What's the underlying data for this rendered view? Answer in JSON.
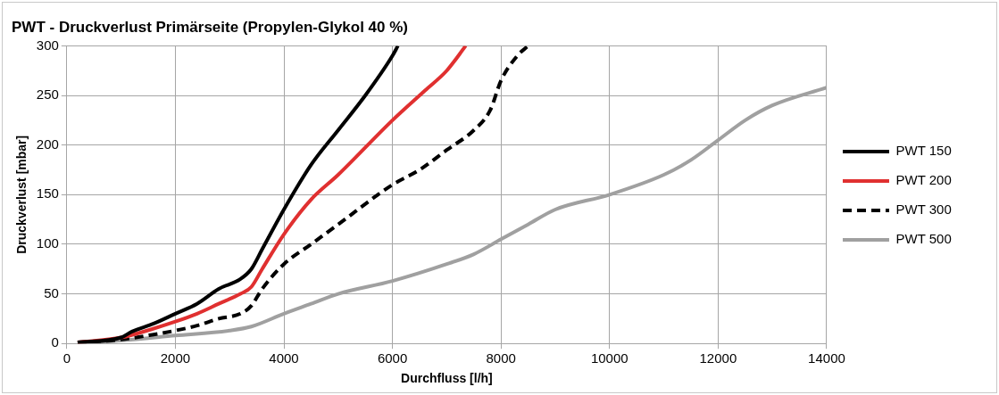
{
  "chart_data": {
    "type": "line",
    "title": "PWT - Druckverlust Primärseite (Propylen-Glykol 40 %)",
    "xlabel": "Durchfluss [l/h]",
    "ylabel": "Druckverlust [mbar]",
    "xlim": [
      0,
      14000
    ],
    "xticks": [
      0,
      2000,
      4000,
      6000,
      8000,
      10000,
      12000,
      14000
    ],
    "ylim": [
      0,
      300
    ],
    "yticks": [
      0,
      50,
      100,
      150,
      200,
      250,
      300
    ],
    "grid": true,
    "legend": "right",
    "marker": "none",
    "series": [
      {
        "name": "PWT 150",
        "color": "#000000",
        "line_style": "solid",
        "x": [
          200,
          1000,
          1200,
          1600,
          2000,
          2400,
          2800,
          3200,
          3400,
          3600,
          4000,
          4500,
          5000,
          5500,
          6000,
          6100
        ],
        "values": [
          1,
          6,
          12,
          20,
          30,
          40,
          55,
          65,
          75,
          95,
          135,
          180,
          215,
          250,
          290,
          300
        ]
      },
      {
        "name": "PWT 200",
        "color": "#e03030",
        "line_style": "solid",
        "x": [
          200,
          1000,
          1600,
          2000,
          2400,
          2800,
          3200,
          3400,
          3600,
          4000,
          4500,
          5000,
          6000,
          6600,
          7000,
          7350
        ],
        "values": [
          1,
          6,
          15,
          22,
          30,
          40,
          50,
          57,
          75,
          110,
          145,
          170,
          225,
          255,
          275,
          300
        ]
      },
      {
        "name": "PWT 300",
        "color": "#000000",
        "line_style": "dashed",
        "x": [
          200,
          1000,
          1600,
          2000,
          2400,
          2800,
          3200,
          3400,
          3600,
          4000,
          4500,
          5000,
          6000,
          6500,
          7000,
          7500,
          7800,
          8000,
          8300,
          8500
        ],
        "values": [
          1,
          4,
          9,
          13,
          18,
          25,
          30,
          38,
          55,
          80,
          100,
          120,
          160,
          175,
          195,
          215,
          235,
          265,
          290,
          300
        ]
      },
      {
        "name": "PWT 500",
        "color": "#a0a0a0",
        "line_style": "solid",
        "x": [
          200,
          1000,
          2000,
          3000,
          3400,
          4000,
          4500,
          5000,
          6000,
          7000,
          7500,
          8000,
          8500,
          9000,
          10000,
          11000,
          11500,
          12000,
          12500,
          13000,
          14000
        ],
        "values": [
          0,
          3,
          8,
          13,
          17,
          30,
          40,
          50,
          63,
          80,
          90,
          105,
          120,
          135,
          150,
          170,
          185,
          205,
          225,
          240,
          258
        ]
      }
    ]
  }
}
